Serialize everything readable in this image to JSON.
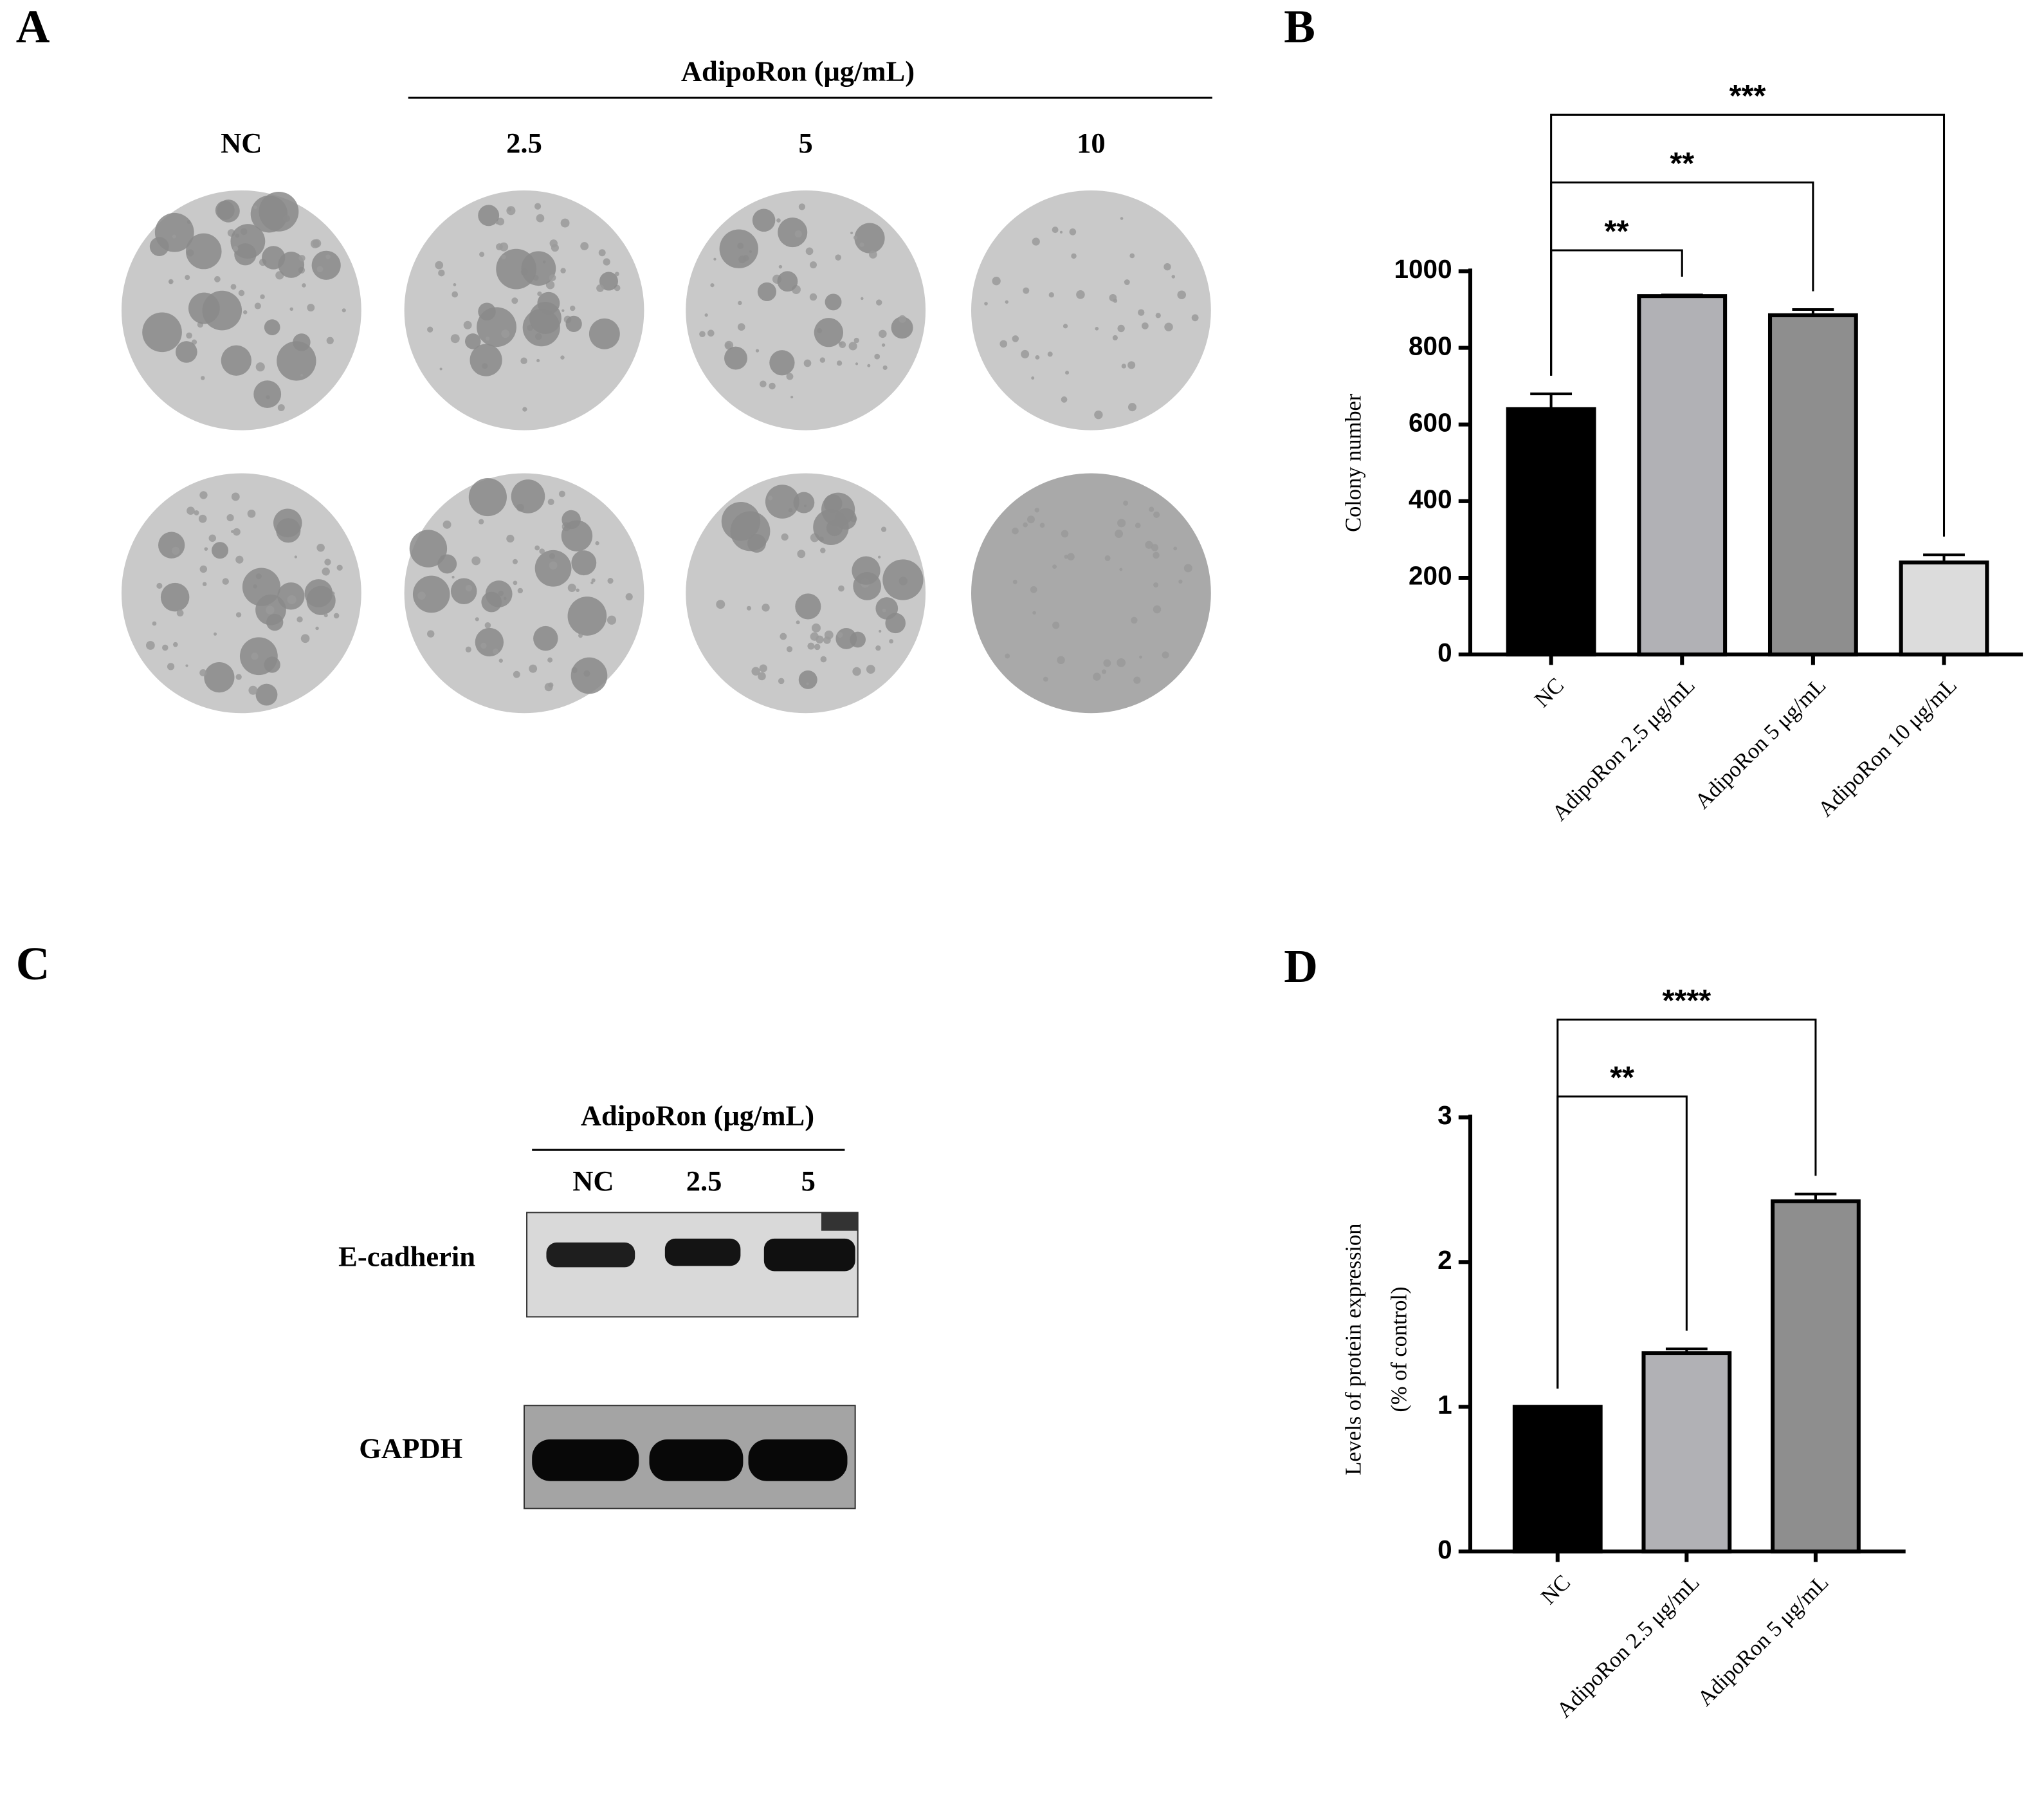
{
  "panels": {
    "A": {
      "label": "A",
      "header": "AdipoRon (μg/mL)",
      "columns": [
        "NC",
        "2.5",
        "5",
        "10"
      ]
    },
    "B": {
      "label": "B"
    },
    "C": {
      "label": "C",
      "header": "AdipoRon (μg/mL)",
      "lanes": [
        "NC",
        "2.5",
        "5"
      ],
      "rows": [
        "E-cadherin",
        "GAPDH"
      ]
    },
    "D": {
      "label": "D"
    }
  },
  "chart_data": [
    {
      "type": "bar",
      "categories": [
        "NC",
        "AdipoRon 2.5 μg/mL",
        "AdipoRon 5 μg/mL",
        "AdipoRon 10 μg/mL"
      ],
      "values": [
        640,
        935,
        885,
        240
      ],
      "errors": [
        40,
        3,
        15,
        20
      ],
      "colors": [
        "#000000",
        "#b1b1b5",
        "#8e8e8e",
        "#dcdcdc"
      ],
      "ylabel": [
        "Colony number"
      ],
      "ylim": [
        0,
        1000
      ],
      "yticks": [
        0,
        200,
        400,
        600,
        800,
        1000
      ],
      "annotations": [
        {
          "label": "**",
          "groups": [
            0,
            1
          ]
        },
        {
          "label": "**",
          "groups": [
            0,
            2
          ]
        },
        {
          "label": "***",
          "groups": [
            0,
            3
          ]
        }
      ]
    },
    {
      "type": "bar",
      "categories": [
        "NC",
        "AdipoRon 2.5 μg/mL",
        "AdipoRon 5 μg/mL"
      ],
      "values": [
        1.0,
        1.37,
        2.42
      ],
      "errors": [
        null,
        0.03,
        0.05
      ],
      "colors": [
        "#000000",
        "#b1b1b5",
        "#8e8e8e"
      ],
      "ylabel": [
        "Levels of protein expression",
        "(% of control)"
      ],
      "ylim": [
        0,
        3
      ],
      "yticks": [
        0,
        1,
        2,
        3
      ],
      "annotations": [
        {
          "label": "**",
          "groups": [
            0,
            1
          ]
        },
        {
          "label": "****",
          "groups": [
            0,
            2
          ]
        }
      ]
    }
  ]
}
